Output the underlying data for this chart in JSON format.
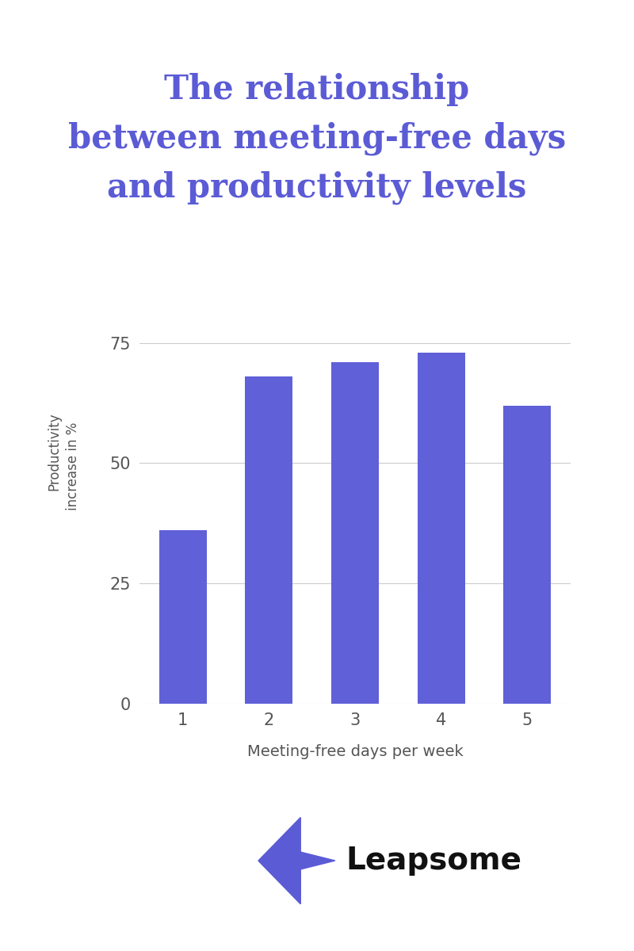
{
  "title_lines": [
    "The relationship",
    "between meeting-free days",
    "and productivity levels"
  ],
  "title_color": "#5b5bd6",
  "categories": [
    1,
    2,
    3,
    4,
    5
  ],
  "values": [
    36,
    68,
    71,
    73,
    62
  ],
  "bar_color": "#6060d8",
  "xlabel": "Meeting-free days per week",
  "ylabel_line1": "Productivity",
  "ylabel_line2": "increase in %",
  "yticks": [
    0,
    25,
    50,
    75
  ],
  "ylim": [
    0,
    85
  ],
  "background_color": "#ffffff",
  "grid_color": "#cccccc",
  "tick_color": "#555555",
  "xlabel_color": "#555555",
  "leapsome_text": "Leapsome",
  "leapsome_text_color": "#111111",
  "logo_color1": "#5b5bd6",
  "logo_color2": "#9999cc"
}
